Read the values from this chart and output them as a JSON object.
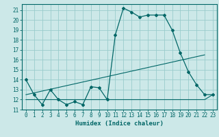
{
  "xlabel": "Humidex (Indice chaleur)",
  "background_color": "#cce8e8",
  "grid_color": "#99cccc",
  "line_color": "#006666",
  "xlim": [
    -0.5,
    23.5
  ],
  "ylim": [
    11,
    21.6
  ],
  "yticks": [
    11,
    12,
    13,
    14,
    15,
    16,
    17,
    18,
    19,
    20,
    21
  ],
  "xticks": [
    0,
    1,
    2,
    3,
    4,
    5,
    6,
    7,
    8,
    9,
    10,
    11,
    12,
    13,
    14,
    15,
    16,
    17,
    18,
    19,
    20,
    21,
    22,
    23
  ],
  "line1_x": [
    0,
    1,
    2,
    3,
    4,
    5,
    6,
    7,
    8,
    9,
    10,
    11,
    12,
    13,
    14,
    15,
    16,
    17,
    18,
    19,
    20,
    21,
    22,
    23
  ],
  "line1_y": [
    14.0,
    12.5,
    11.5,
    13.0,
    12.0,
    11.5,
    11.8,
    11.5,
    13.3,
    13.2,
    12.0,
    18.5,
    21.2,
    20.8,
    20.3,
    20.5,
    20.5,
    20.5,
    19.0,
    16.7,
    14.8,
    13.5,
    12.5,
    12.5
  ],
  "line2_x": [
    0,
    1,
    2,
    3,
    4,
    5,
    6,
    7,
    8,
    9,
    10,
    11,
    12,
    13,
    14,
    15,
    16,
    17,
    18,
    19,
    20,
    21,
    22,
    23
  ],
  "line2_y": [
    12.0,
    12.0,
    12.0,
    12.0,
    12.0,
    12.0,
    12.0,
    12.0,
    12.0,
    12.0,
    12.0,
    12.0,
    12.0,
    12.0,
    12.0,
    12.0,
    12.0,
    12.0,
    12.0,
    12.0,
    12.0,
    12.0,
    12.0,
    12.5
  ],
  "line3_x": [
    0,
    22
  ],
  "line3_y": [
    12.5,
    16.5
  ]
}
